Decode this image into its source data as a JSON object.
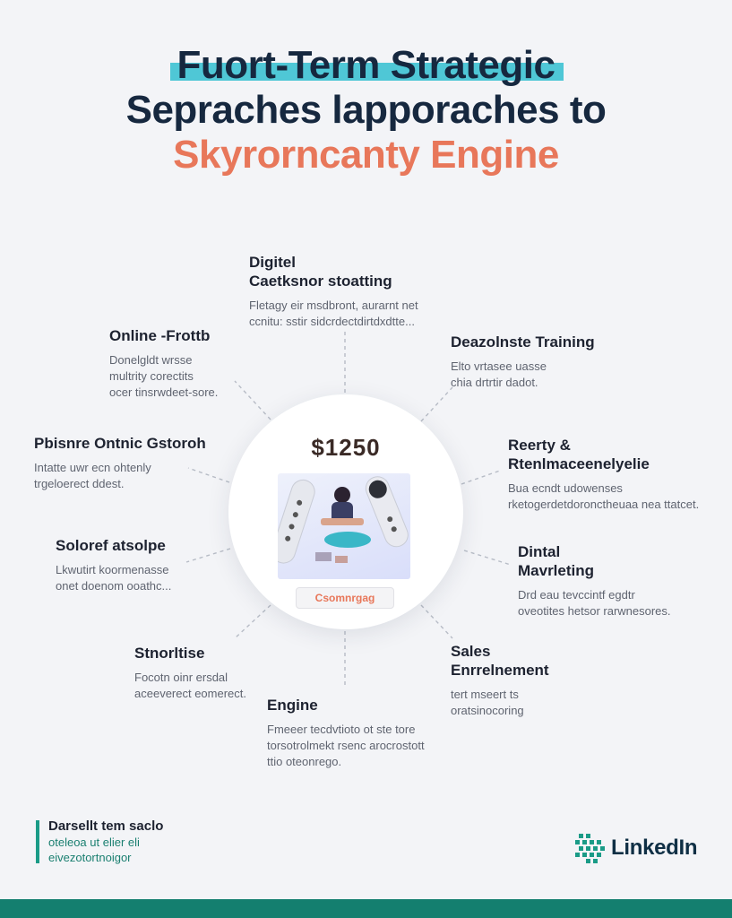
{
  "title": {
    "line1": "Fuort-Term Strategic",
    "line2": "Sepraches lapporaches to",
    "line3": "Skyrorncanty Engine"
  },
  "hub": {
    "price": "$1250",
    "badge": "Csomnrgag"
  },
  "nodes": {
    "top": {
      "heading": [
        "Digitel",
        "Caetksnor stoatting"
      ],
      "body": [
        "Fletagy eir msdbront, aurarnt net",
        "ccnitu: sstir sidcrdectdirtdxdtte..."
      ]
    },
    "top_right": {
      "heading": [
        "Deazolnste Training"
      ],
      "body": [
        "Elto vrtasee uasse",
        "chia drtrtir dadot."
      ]
    },
    "upper_left": {
      "heading": [
        "Online -Frottb"
      ],
      "body": [
        "Donelgldt wrsse",
        "multrity corectits",
        "ocer tinsrwdeet-sore."
      ]
    },
    "right_upper": {
      "heading": [
        "Reerty &",
        "Rtenlmaceenelyelie"
      ],
      "body": [
        "Bua ecndt udowenses",
        "rketogerdetdoronctheuaa nea ttatcet."
      ]
    },
    "left_mid": {
      "heading": [
        "Pbisnre Ontnic Gstoroh"
      ],
      "body": [
        "Intatte uwr ecn ohtenly",
        "trgeloerect ddest."
      ]
    },
    "right_mid": {
      "heading": [
        "Dintal",
        "Mavrleting"
      ],
      "body": [
        "Drd eau tevccintf egdtr",
        "oveotites hetsor rarwnesores."
      ]
    },
    "left_lower": {
      "heading": [
        "Soloref atsolpe"
      ],
      "body": [
        "Lkwutirt koormenasse",
        "onet doenom ooathc..."
      ]
    },
    "bottom_right": {
      "heading": [
        "Sales",
        "Enrrelnement"
      ],
      "body": [
        "tert mseert ts",
        "oratsinocoring"
      ]
    },
    "bottom_left": {
      "heading": [
        "Stnorltise"
      ],
      "body": [
        "Focotn oinr ersdal",
        "aceeverect eomerect."
      ]
    },
    "bottom": {
      "heading": [
        "Engine"
      ],
      "body": [
        "Fmeeer tecdvtioto ot ste tore",
        "torsotrolmekt rsenc arocrostott",
        "ttio oteonrego."
      ]
    }
  },
  "footer": {
    "heading": "Darsellt tem saclo",
    "body": [
      "oteleoa ut elier eli",
      "eivezotortnoigor"
    ]
  },
  "brand": {
    "name": "LinkedIn"
  },
  "colors": {
    "accent_teal": "#4fc7d6",
    "accent_orange": "#e8775a",
    "brand_green": "#147f6f"
  }
}
